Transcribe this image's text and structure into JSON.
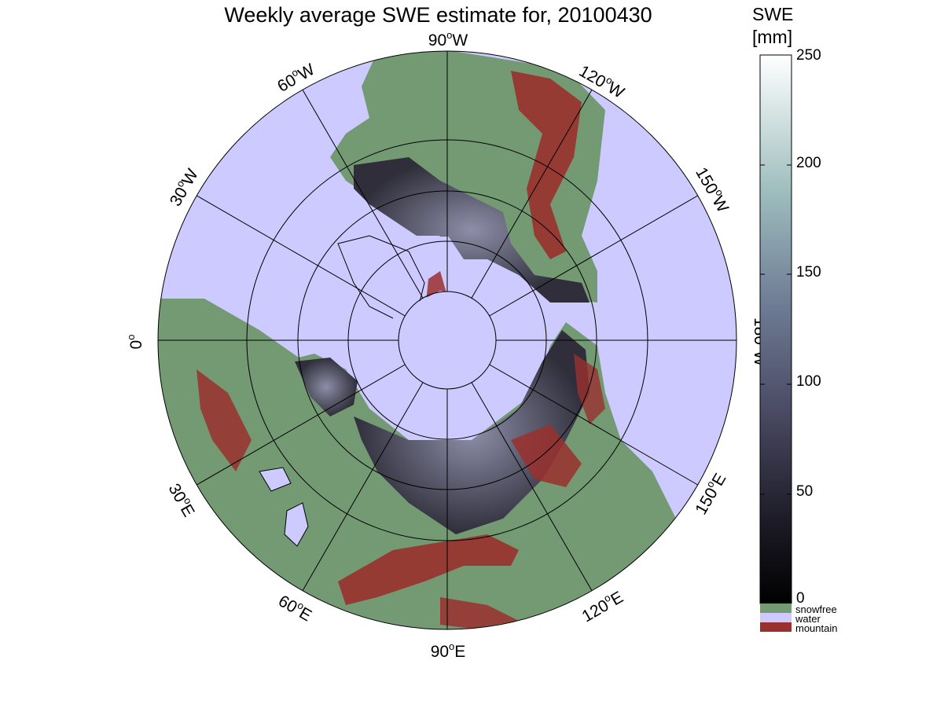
{
  "title": "Weekly average SWE estimate for, 20100430",
  "colorbar": {
    "title_line1": "SWE",
    "title_line2": "[mm]",
    "ticks": [
      "0",
      "50",
      "100",
      "150",
      "200",
      "250"
    ],
    "range": [
      0,
      250
    ],
    "legend": [
      {
        "label": "snowfree",
        "color": "#739a72"
      },
      {
        "label": "water",
        "color": "#cccaff"
      },
      {
        "label": "mountain",
        "color": "#9a302e"
      }
    ]
  },
  "map": {
    "projection": "north polar stereographic",
    "longitude_labels": [
      {
        "deg": "90",
        "dir": "W"
      },
      {
        "deg": "120",
        "dir": "W"
      },
      {
        "deg": "150",
        "dir": "W"
      },
      {
        "deg": "180",
        "dir": "W"
      },
      {
        "deg": "150",
        "dir": "E"
      },
      {
        "deg": "120",
        "dir": "E"
      },
      {
        "deg": "90",
        "dir": "E"
      },
      {
        "deg": "60",
        "dir": "E"
      },
      {
        "deg": "30",
        "dir": "E"
      },
      {
        "deg": "0",
        "dir": ""
      },
      {
        "deg": "30",
        "dir": "W"
      },
      {
        "deg": "60",
        "dir": "W"
      }
    ],
    "degree_symbol": "o",
    "colors": {
      "water": "#cccaff",
      "snowfree": "#739a72",
      "mountain": "#9a302e",
      "snow_dark": "#2c2b36",
      "snow_mid": "#5c5c72"
    }
  }
}
